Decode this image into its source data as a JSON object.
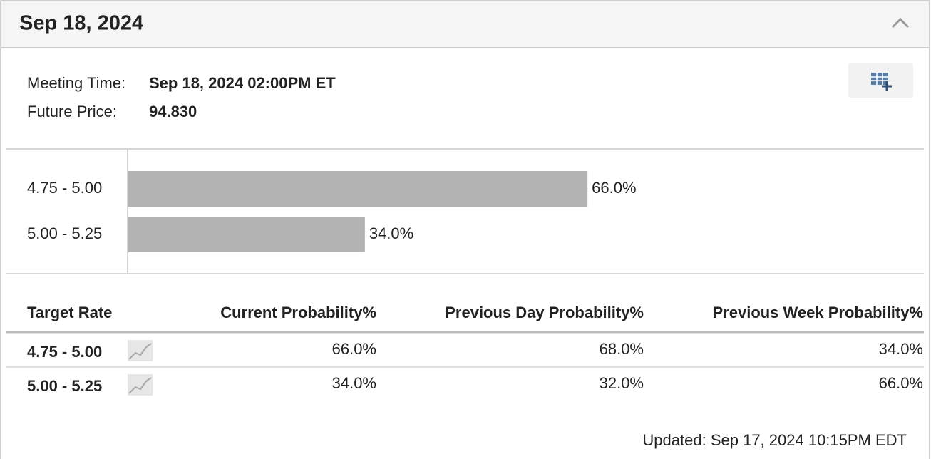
{
  "header": {
    "title": "Sep 18, 2024"
  },
  "meeting": {
    "time_label": "Meeting Time:",
    "time_value": "Sep 18, 2024 02:00PM ET",
    "price_label": "Future Price:",
    "price_value": "94.830"
  },
  "chart_data": {
    "type": "bar",
    "orientation": "horizontal",
    "categories": [
      "4.75 - 5.00",
      "5.00 - 5.25"
    ],
    "values": [
      66.0,
      34.0
    ],
    "value_labels": [
      "66.0%",
      "34.0%"
    ],
    "color": "#b3b3b3",
    "xlim": [
      0,
      100
    ]
  },
  "table": {
    "headers": [
      "Target Rate",
      "Current Probability%",
      "Previous Day Probability%",
      "Previous Week Probability%"
    ],
    "rows": [
      [
        "4.75 - 5.00",
        "66.0%",
        "68.0%",
        "34.0%"
      ],
      [
        "5.00 - 5.25",
        "34.0%",
        "32.0%",
        "66.0%"
      ]
    ]
  },
  "footer": {
    "updated": "Updated: Sep 17, 2024 10:15PM EDT"
  }
}
